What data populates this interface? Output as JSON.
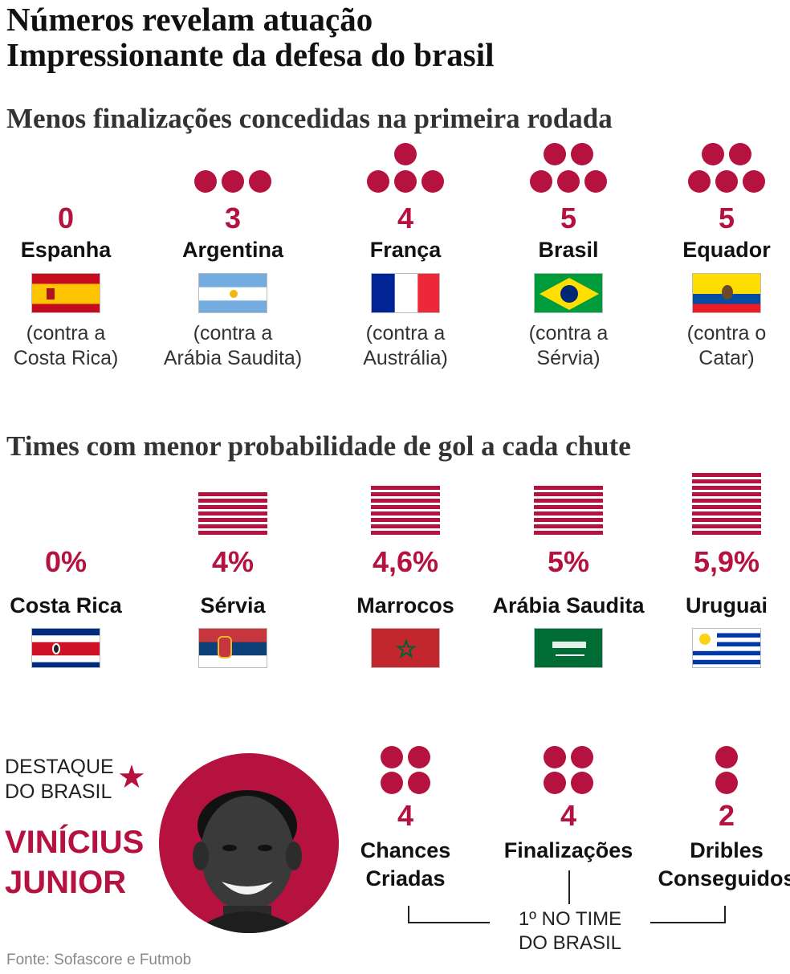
{
  "title_line1": "Números revelam atuação",
  "title_line2": "Impressionante da defesa do brasil",
  "chart_data": [
    {
      "type": "pictograph",
      "title": "Menos finalizações concedidas na primeira rodada",
      "items": [
        {
          "country": "Espanha",
          "value": 0,
          "label": "0",
          "note": "(contra a\nCosta Rica)",
          "flag": "spain"
        },
        {
          "country": "Argentina",
          "value": 3,
          "label": "3",
          "note": "(contra a\nArábia Saudita)",
          "flag": "argentina"
        },
        {
          "country": "França",
          "value": 4,
          "label": "4",
          "note": "(contra a\nAustrália)",
          "flag": "france"
        },
        {
          "country": "Brasil",
          "value": 5,
          "label": "5",
          "note": "(contra a\nSérvia)",
          "flag": "brazil"
        },
        {
          "country": "Equador",
          "value": 5,
          "label": "5",
          "note": "(contra o\nCatar)",
          "flag": "ecuador"
        }
      ]
    },
    {
      "type": "pictograph",
      "title": "Times com menor probabilidade de gol a cada chute",
      "items": [
        {
          "country": "Costa Rica",
          "value": 0,
          "label": "0%",
          "flag": "costa-rica"
        },
        {
          "country": "Sérvia",
          "value": 4,
          "label": "4%",
          "flag": "serbia"
        },
        {
          "country": "Marrocos",
          "value": 4.6,
          "label": "4,6%",
          "flag": "morocco"
        },
        {
          "country": "Arábia Saudita",
          "value": 5,
          "label": "5%",
          "flag": "saudi-arabia"
        },
        {
          "country": "Uruguai",
          "value": 5.9,
          "label": "5,9%",
          "flag": "uruguay"
        }
      ]
    },
    {
      "type": "pictograph",
      "items": [
        {
          "label": "4",
          "value": 4,
          "name": "Chances\nCriadas"
        },
        {
          "label": "4",
          "value": 4,
          "name": "Finalizações"
        },
        {
          "label": "2",
          "value": 2,
          "name": "Dribles\nConseguidos"
        }
      ]
    }
  ],
  "highlight": {
    "label": "DESTAQUE\nDO BRASIL",
    "player": "VINÍCIUS\nJUNIOR",
    "bracket_text": "1º NO TIME\nDO BRASIL"
  },
  "source": "Fonte: Sofascore e Futmob",
  "colors": {
    "accent": "#b5123f"
  }
}
